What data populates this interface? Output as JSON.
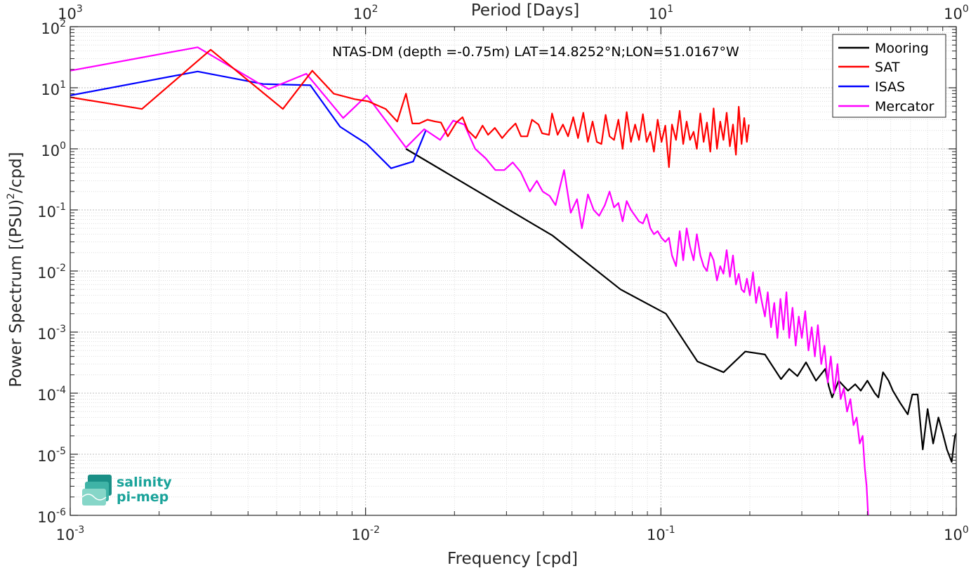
{
  "chart_data": {
    "type": "line",
    "title": "NTAS-DM (depth =-0.75m) LAT=14.8252°N;LON=51.0167°W",
    "xlabel": "Frequency [cpd]",
    "ylabel": "Power Spectrum [(PSU)",
    "ylabel_sup": "2",
    "ylabel_suffix": "/cpd]",
    "top_xlabel": "Period [Days]",
    "xscale": "log",
    "yscale": "log",
    "xlim": [
      0.001,
      1
    ],
    "ylim": [
      1e-06,
      100
    ],
    "grid": true,
    "minor_grid": true,
    "legend_position": "top-right",
    "x_ticks": [
      {
        "value": 0.001,
        "base": "10",
        "exp": "-3"
      },
      {
        "value": 0.01,
        "base": "10",
        "exp": "-2"
      },
      {
        "value": 0.1,
        "base": "10",
        "exp": "-1"
      },
      {
        "value": 1,
        "base": "10",
        "exp": "0"
      }
    ],
    "top_ticks": [
      {
        "value": 0.001,
        "base": "10",
        "exp": "3"
      },
      {
        "value": 0.01,
        "base": "10",
        "exp": "2"
      },
      {
        "value": 0.1,
        "base": "10",
        "exp": "1"
      },
      {
        "value": 1,
        "base": "10",
        "exp": "0"
      }
    ],
    "y_ticks": [
      {
        "value": 100,
        "base": "10",
        "exp": "2"
      },
      {
        "value": 10,
        "base": "10",
        "exp": "1"
      },
      {
        "value": 1,
        "base": "10",
        "exp": "0"
      },
      {
        "value": 0.1,
        "base": "10",
        "exp": "-1"
      },
      {
        "value": 0.01,
        "base": "10",
        "exp": "-2"
      },
      {
        "value": 0.001,
        "base": "10",
        "exp": "-3"
      },
      {
        "value": 0.0001,
        "base": "10",
        "exp": "-4"
      },
      {
        "value": 1e-05,
        "base": "10",
        "exp": "-5"
      },
      {
        "value": 1e-06,
        "base": "10",
        "exp": "-6"
      }
    ],
    "series": [
      {
        "name": "Mooring",
        "color": "#000000",
        "x": [
          0.0137,
          0.043,
          0.073,
          0.104,
          0.133,
          0.163,
          0.193,
          0.225,
          0.255,
          0.272,
          0.29,
          0.31,
          0.335,
          0.36,
          0.37,
          0.38,
          0.4,
          0.43,
          0.455,
          0.475,
          0.5,
          0.53,
          0.545,
          0.565,
          0.59,
          0.61,
          0.645,
          0.685,
          0.71,
          0.74,
          0.77,
          0.8,
          0.835,
          0.87,
          0.9,
          0.93,
          0.965,
          0.99,
          1.0
        ],
        "y": [
          1.0,
          0.038,
          0.005,
          0.002,
          0.00033,
          0.00022,
          0.00048,
          0.00043,
          0.00017,
          0.00025,
          0.00019,
          0.00032,
          0.00016,
          0.00025,
          0.00013,
          8.5e-05,
          0.00016,
          0.00011,
          0.00014,
          0.00011,
          0.00016,
          0.0001,
          8.5e-05,
          0.00022,
          0.00016,
          0.00011,
          7e-05,
          4.5e-05,
          9.5e-05,
          9.5e-05,
          1.2e-05,
          5.5e-05,
          1.5e-05,
          4e-05,
          2.2e-05,
          1.2e-05,
          7.5e-06,
          2e-05,
          2.2e-05
        ]
      },
      {
        "name": "SAT",
        "color": "#ff0000",
        "x": [
          0.001,
          0.00175,
          0.00299,
          0.00525,
          0.0066,
          0.0078,
          0.0092,
          0.0102,
          0.0117,
          0.0128,
          0.0137,
          0.0144,
          0.0152,
          0.0162,
          0.0172,
          0.018,
          0.019,
          0.0203,
          0.0213,
          0.0222,
          0.0236,
          0.0249,
          0.026,
          0.0274,
          0.029,
          0.0305,
          0.0322,
          0.0336,
          0.0353,
          0.0366,
          0.0385,
          0.0396,
          0.0418,
          0.0428,
          0.0447,
          0.0466,
          0.0485,
          0.0505,
          0.0524,
          0.0546,
          0.0566,
          0.0587,
          0.0607,
          0.0629,
          0.065,
          0.067,
          0.0694,
          0.0718,
          0.0742,
          0.0766,
          0.0792,
          0.0818,
          0.0843,
          0.0869,
          0.0895,
          0.0921,
          0.0947,
          0.0975,
          0.1005,
          0.1035,
          0.1065,
          0.109,
          0.1125,
          0.1158,
          0.119,
          0.1222,
          0.1255,
          0.129,
          0.1323,
          0.136,
          0.1395,
          0.1432,
          0.147,
          0.1508,
          0.1548,
          0.1588,
          0.1628,
          0.167,
          0.1712,
          0.1754,
          0.1795,
          0.1835,
          0.1875,
          0.1915,
          0.1955,
          0.1985
        ],
        "y": [
          7.0,
          4.5,
          42.0,
          4.5,
          19.0,
          8.0,
          6.5,
          6.0,
          4.5,
          2.8,
          8.0,
          2.6,
          2.6,
          3.0,
          2.8,
          2.7,
          1.6,
          2.7,
          3.3,
          2.0,
          1.5,
          2.4,
          1.7,
          2.2,
          1.5,
          2.0,
          2.6,
          1.6,
          1.6,
          3.0,
          2.5,
          1.8,
          1.7,
          3.8,
          1.7,
          2.5,
          1.6,
          3.3,
          1.5,
          3.9,
          1.3,
          2.8,
          1.3,
          1.2,
          3.6,
          1.6,
          1.4,
          3.0,
          1.0,
          4.0,
          1.3,
          2.5,
          1.4,
          3.7,
          1.3,
          1.9,
          0.9,
          3.0,
          1.3,
          2.4,
          0.5,
          2.5,
          1.4,
          4.2,
          1.2,
          2.8,
          1.4,
          1.9,
          1.0,
          3.8,
          1.3,
          2.7,
          0.9,
          4.6,
          1.0,
          2.8,
          1.4,
          3.9,
          1.1,
          2.5,
          0.8,
          4.9,
          1.2,
          3.2,
          1.3,
          2.5
        ]
      },
      {
        "name": "ISAS",
        "color": "#0000ff",
        "x": [
          0.001,
          0.0027,
          0.0045,
          0.0065,
          0.0082,
          0.0101,
          0.0122,
          0.0145,
          0.016
        ],
        "y": [
          7.5,
          18.5,
          11.5,
          11.0,
          2.3,
          1.2,
          0.48,
          0.62,
          2.0
        ]
      },
      {
        "name": "Mercator",
        "color": "#ff00ff",
        "x": [
          0.001,
          0.0027,
          0.0047,
          0.0063,
          0.0084,
          0.0101,
          0.0137,
          0.0158,
          0.0179,
          0.0198,
          0.0216,
          0.0235,
          0.0255,
          0.0275,
          0.0295,
          0.0315,
          0.0335,
          0.036,
          0.038,
          0.0398,
          0.042,
          0.044,
          0.047,
          0.0495,
          0.052,
          0.054,
          0.0566,
          0.0592,
          0.0618,
          0.0646,
          0.067,
          0.0694,
          0.0718,
          0.0742,
          0.0766,
          0.0792,
          0.0818,
          0.0843,
          0.0869,
          0.0895,
          0.0921,
          0.0947,
          0.0975,
          0.1005,
          0.1035,
          0.1065,
          0.109,
          0.1125,
          0.1158,
          0.119,
          0.1222,
          0.1255,
          0.129,
          0.1323,
          0.136,
          0.1395,
          0.1432,
          0.147,
          0.1508,
          0.1548,
          0.1588,
          0.1628,
          0.167,
          0.1712,
          0.1754,
          0.1795,
          0.1835,
          0.1875,
          0.1915,
          0.1955,
          0.2,
          0.205,
          0.21,
          0.215,
          0.22,
          0.225,
          0.23,
          0.236,
          0.242,
          0.248,
          0.254,
          0.26,
          0.266,
          0.272,
          0.279,
          0.286,
          0.293,
          0.3,
          0.308,
          0.316,
          0.324,
          0.332,
          0.34,
          0.349,
          0.358,
          0.367,
          0.376,
          0.386,
          0.396,
          0.406,
          0.416,
          0.427,
          0.438,
          0.449,
          0.46,
          0.471,
          0.482,
          0.49,
          0.497,
          0.503
        ],
        "y": [
          19.0,
          46.0,
          9.5,
          17.0,
          3.2,
          7.5,
          1.05,
          2.1,
          1.4,
          2.9,
          2.5,
          1.0,
          0.7,
          0.45,
          0.45,
          0.6,
          0.42,
          0.2,
          0.3,
          0.2,
          0.17,
          0.12,
          0.45,
          0.09,
          0.15,
          0.05,
          0.18,
          0.1,
          0.08,
          0.12,
          0.2,
          0.11,
          0.13,
          0.065,
          0.14,
          0.1,
          0.08,
          0.065,
          0.06,
          0.085,
          0.05,
          0.04,
          0.045,
          0.035,
          0.03,
          0.035,
          0.018,
          0.012,
          0.045,
          0.015,
          0.05,
          0.025,
          0.015,
          0.04,
          0.018,
          0.012,
          0.01,
          0.02,
          0.015,
          0.007,
          0.012,
          0.009,
          0.022,
          0.008,
          0.018,
          0.006,
          0.009,
          0.005,
          0.0045,
          0.0075,
          0.004,
          0.0095,
          0.003,
          0.0055,
          0.003,
          0.0018,
          0.0045,
          0.0012,
          0.003,
          0.0008,
          0.0035,
          0.0011,
          0.0045,
          0.0008,
          0.0025,
          0.0006,
          0.0018,
          0.0008,
          0.0022,
          0.0005,
          0.0012,
          0.0004,
          0.0013,
          0.0003,
          0.0006,
          0.00015,
          0.0004,
          0.0001,
          0.0003,
          8e-05,
          0.00012,
          5e-05,
          8e-05,
          3e-05,
          4e-05,
          1.5e-05,
          2e-05,
          6e-06,
          3e-06,
          1e-06
        ]
      }
    ],
    "logo": {
      "line1": "salinity",
      "line2": "pi-mep"
    }
  }
}
